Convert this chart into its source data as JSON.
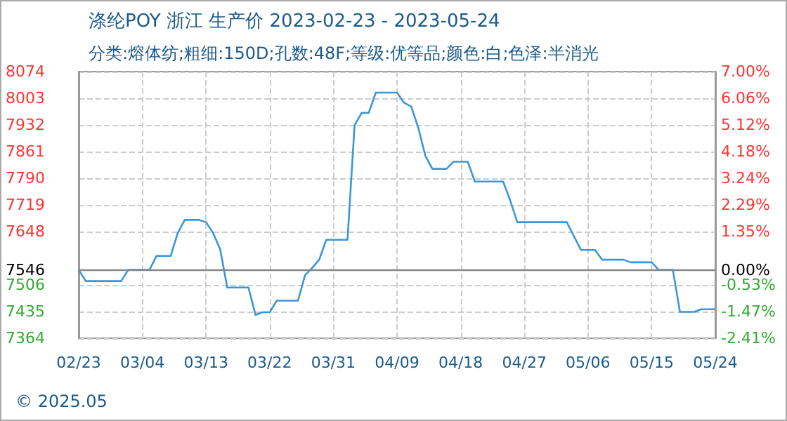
{
  "chart_data": {
    "type": "line",
    "title": "涤纶POY 浙江 生产价 2023-02-23 - 2023-05-24",
    "subtitle": "分类:熔体纺;粗细:150D;孔数:48F;等级:优等品;颜色:白;色泽:半消光",
    "annotations": [
      "© 2025.05"
    ],
    "x": [
      "2023-02-23",
      "2023-02-24",
      "2023-03-01",
      "2023-03-02",
      "2023-03-05",
      "2023-03-06",
      "2023-03-08",
      "2023-03-09",
      "2023-03-10",
      "2023-03-12",
      "2023-03-13",
      "2023-03-14",
      "2023-03-15",
      "2023-03-16",
      "2023-03-19",
      "2023-03-20",
      "2023-03-21",
      "2023-03-22",
      "2023-03-23",
      "2023-03-26",
      "2023-03-27",
      "2023-03-28",
      "2023-03-29",
      "2023-03-30",
      "2023-04-02",
      "2023-04-03",
      "2023-04-04",
      "2023-04-05",
      "2023-04-06",
      "2023-04-09",
      "2023-04-10",
      "2023-04-11",
      "2023-04-12",
      "2023-04-13",
      "2023-04-14",
      "2023-04-16",
      "2023-04-17",
      "2023-04-19",
      "2023-04-20",
      "2023-04-24",
      "2023-04-25",
      "2023-04-26",
      "2023-05-03",
      "2023-05-05",
      "2023-05-07",
      "2023-05-08",
      "2023-05-11",
      "2023-05-12",
      "2023-05-15",
      "2023-05-16",
      "2023-05-18",
      "2023-05-19",
      "2023-05-21",
      "2023-05-22",
      "2023-05-24"
    ],
    "series": [
      {
        "color": "#3a96d8",
        "values": [
          7546,
          7516,
          7516,
          7546,
          7546,
          7583,
          7583,
          7644,
          7679,
          7679,
          7673,
          7644,
          7601,
          7499,
          7499,
          7426,
          7433,
          7433,
          7464,
          7464,
          7532,
          7551,
          7573,
          7626,
          7626,
          7931,
          7964,
          7964,
          8018,
          8018,
          7991,
          7981,
          7925,
          7850,
          7815,
          7815,
          7834,
          7834,
          7781,
          7781,
          7731,
          7673,
          7673,
          7599,
          7599,
          7573,
          7573,
          7566,
          7566,
          7546,
          7546,
          7434,
          7434,
          7441,
          7441
        ]
      }
    ],
    "xlim": [
      "2023-02-23",
      "2023-05-24"
    ],
    "xticks": [
      {
        "value": "2023-02-23",
        "label": "02/23"
      },
      {
        "value": "2023-03-04",
        "label": "03/04"
      },
      {
        "value": "2023-03-13",
        "label": "03/13"
      },
      {
        "value": "2023-03-22",
        "label": "03/22"
      },
      {
        "value": "2023-03-31",
        "label": "03/31"
      },
      {
        "value": "2023-04-09",
        "label": "04/09"
      },
      {
        "value": "2023-04-18",
        "label": "04/18"
      },
      {
        "value": "2023-04-27",
        "label": "04/27"
      },
      {
        "value": "2023-05-06",
        "label": "05/06"
      },
      {
        "value": "2023-05-15",
        "label": "05/15"
      },
      {
        "value": "2023-05-24",
        "label": "05/24"
      }
    ],
    "ylim": [
      7364,
      8074
    ],
    "yticks": [
      7364,
      7435,
      7506,
      7546,
      7648,
      7719,
      7790,
      7861,
      7932,
      8003,
      8074
    ],
    "y2lim": [
      -2.41,
      7.0
    ],
    "y2ticks": [
      {
        "value": -2.41,
        "label": "-2.41%"
      },
      {
        "value": -1.47,
        "label": "-1.47%"
      },
      {
        "value": -0.53,
        "label": "-0.53%"
      },
      {
        "value": 0,
        "label": "0.00%"
      },
      {
        "value": 1.35,
        "label": "1.35%"
      },
      {
        "value": 2.29,
        "label": "2.29%"
      },
      {
        "value": 3.24,
        "label": "3.24%"
      },
      {
        "value": 4.18,
        "label": "4.18%"
      },
      {
        "value": 5.12,
        "label": "5.12%"
      },
      {
        "value": 6.06,
        "label": "6.06%"
      },
      {
        "value": 7.0,
        "label": "7.00%"
      }
    ],
    "ref_lines": [
      {
        "axis": "y",
        "value": 7546,
        "label": null,
        "color": "#888888"
      }
    ],
    "grid": true,
    "marker": "none",
    "line_style": "solid"
  }
}
